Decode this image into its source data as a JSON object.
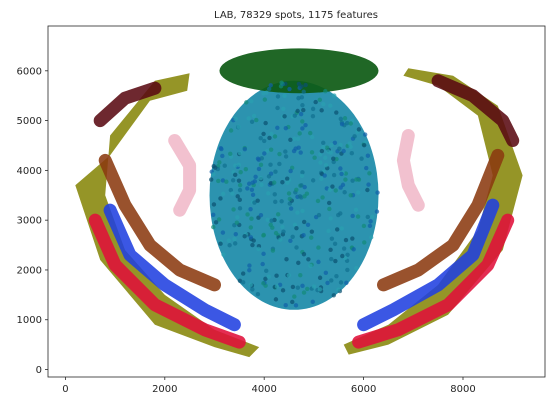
{
  "chart_data": {
    "type": "scatter",
    "title": "LAB, 78329 spots, 1175 features",
    "xlabel": "",
    "ylabel": "",
    "xlim": [
      -350,
      9650
    ],
    "ylim": [
      -150,
      6900
    ],
    "xticks": [
      0,
      2000,
      4000,
      6000,
      8000
    ],
    "yticks": [
      0,
      1000,
      2000,
      3000,
      4000,
      5000,
      6000
    ],
    "x_tick_labels": [
      "0",
      "2000",
      "4000",
      "6000",
      "8000"
    ],
    "y_tick_labels": [
      "0",
      "1000",
      "2000",
      "3000",
      "4000",
      "5000",
      "6000"
    ],
    "grid": false,
    "legend": "none",
    "point_color_encoding": "LAB color per spot",
    "regions": [
      {
        "name": "outer-rim-left",
        "color": "#8a8a10",
        "polygon": [
          [
            200,
            3700
          ],
          [
            700,
            2200
          ],
          [
            1800,
            900
          ],
          [
            3000,
            450
          ],
          [
            3700,
            250
          ],
          [
            3900,
            450
          ],
          [
            3000,
            800
          ],
          [
            2000,
            1500
          ],
          [
            1200,
            2400
          ],
          [
            800,
            3500
          ],
          [
            900,
            4700
          ],
          [
            1800,
            5800
          ],
          [
            2500,
            5950
          ],
          [
            2450,
            5600
          ],
          [
            1700,
            5400
          ],
          [
            900,
            4300
          ]
        ]
      },
      {
        "name": "cortex-red-left",
        "color": "#e0103a",
        "points": [
          [
            600,
            3000
          ],
          [
            1000,
            2100
          ],
          [
            1800,
            1300
          ],
          [
            2800,
            800
          ],
          [
            3500,
            550
          ]
        ]
      },
      {
        "name": "cortex-blue-left",
        "color": "#2040e0",
        "points": [
          [
            900,
            3200
          ],
          [
            1300,
            2300
          ],
          [
            2000,
            1700
          ],
          [
            2800,
            1200
          ],
          [
            3400,
            900
          ]
        ]
      },
      {
        "name": "cortex-brown-left",
        "color": "#8b3a10",
        "points": [
          [
            800,
            4200
          ],
          [
            1200,
            3300
          ],
          [
            1700,
            2500
          ],
          [
            2300,
            2000
          ],
          [
            3000,
            1700
          ]
        ]
      },
      {
        "name": "dark-top-left",
        "color": "#5a0a12",
        "points": [
          [
            700,
            5000
          ],
          [
            1200,
            5450
          ],
          [
            1800,
            5650
          ]
        ]
      },
      {
        "name": "pink-hippo-left",
        "color": "#f0b8c8",
        "points": [
          [
            2200,
            4600
          ],
          [
            2500,
            4100
          ],
          [
            2500,
            3600
          ],
          [
            2300,
            3200
          ]
        ]
      },
      {
        "name": "central-teal",
        "color": "#1a8aa8",
        "center": [
          4600,
          3500
        ],
        "rx": 1700,
        "ry": 2300
      },
      {
        "name": "top-dark-green",
        "color": "#0d5a14",
        "center": [
          4700,
          6000
        ],
        "rx": 1600,
        "ry": 450
      },
      {
        "name": "outer-rim-right",
        "color": "#8a8a10",
        "polygon": [
          [
            9200,
            3900
          ],
          [
            8800,
            2400
          ],
          [
            7700,
            1100
          ],
          [
            6500,
            500
          ],
          [
            5700,
            300
          ],
          [
            5600,
            500
          ],
          [
            6500,
            900
          ],
          [
            7500,
            1700
          ],
          [
            8300,
            2800
          ],
          [
            8600,
            3900
          ],
          [
            8300,
            5100
          ],
          [
            7500,
            5700
          ],
          [
            6800,
            5900
          ],
          [
            6900,
            6050
          ],
          [
            7800,
            5900
          ],
          [
            8700,
            5300
          ]
        ]
      },
      {
        "name": "cortex-red-right",
        "color": "#e0103a",
        "points": [
          [
            8900,
            3000
          ],
          [
            8500,
            2100
          ],
          [
            7700,
            1300
          ],
          [
            6700,
            800
          ],
          [
            5900,
            550
          ]
        ]
      },
      {
        "name": "cortex-blue-right",
        "color": "#2040e0",
        "points": [
          [
            8600,
            3300
          ],
          [
            8200,
            2300
          ],
          [
            7500,
            1700
          ],
          [
            6600,
            1200
          ],
          [
            6000,
            900
          ]
        ]
      },
      {
        "name": "cortex-brown-right",
        "color": "#8b3a10",
        "points": [
          [
            8700,
            4300
          ],
          [
            8300,
            3300
          ],
          [
            7800,
            2500
          ],
          [
            7100,
            2000
          ],
          [
            6400,
            1700
          ]
        ]
      },
      {
        "name": "dark-top-right",
        "color": "#5a0a12",
        "points": [
          [
            7500,
            5800
          ],
          [
            8200,
            5500
          ],
          [
            8800,
            5000
          ],
          [
            9000,
            4600
          ]
        ]
      },
      {
        "name": "pink-hippo-right",
        "color": "#f0b8c8",
        "points": [
          [
            6900,
            4700
          ],
          [
            6800,
            4200
          ],
          [
            6900,
            3700
          ],
          [
            7100,
            3300
          ]
        ]
      }
    ]
  }
}
